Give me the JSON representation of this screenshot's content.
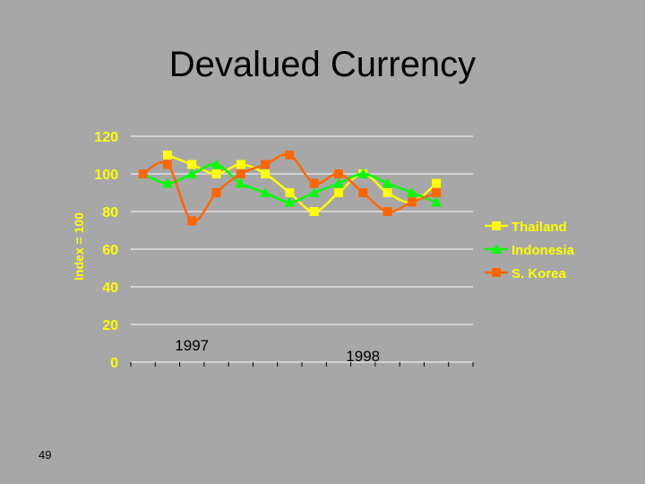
{
  "slide": {
    "title": "Devalued Currency",
    "page_number": "49"
  },
  "chart_data": {
    "type": "line",
    "ylabel": "Index = 100",
    "xlabel": "",
    "ylim": [
      0,
      120
    ],
    "yticks": [
      0,
      20,
      40,
      60,
      80,
      100,
      120
    ],
    "x": [
      1,
      2,
      3,
      4,
      5,
      6,
      7,
      8,
      9,
      10,
      11,
      12,
      13,
      14
    ],
    "year_labels": [
      {
        "text": "1997",
        "at": 2.5
      },
      {
        "text": "1998",
        "at": 9.5
      }
    ],
    "grid": "horizontal",
    "legend": "right",
    "series": [
      {
        "name": "Thailand",
        "color": "#ffff00",
        "marker": "square",
        "values": [
          null,
          110,
          105,
          100,
          105,
          100,
          90,
          80,
          90,
          100,
          90,
          85,
          95,
          null
        ]
      },
      {
        "name": "Indonesia",
        "color": "#00ff00",
        "marker": "triangle",
        "values": [
          100,
          95,
          100,
          105,
          95,
          90,
          85,
          90,
          95,
          100,
          95,
          90,
          85,
          null
        ]
      },
      {
        "name": "S. Korea",
        "color": "#ff6600",
        "marker": "square",
        "values": [
          100,
          105,
          75,
          90,
          100,
          105,
          110,
          95,
          100,
          90,
          80,
          85,
          90,
          null
        ]
      }
    ]
  }
}
